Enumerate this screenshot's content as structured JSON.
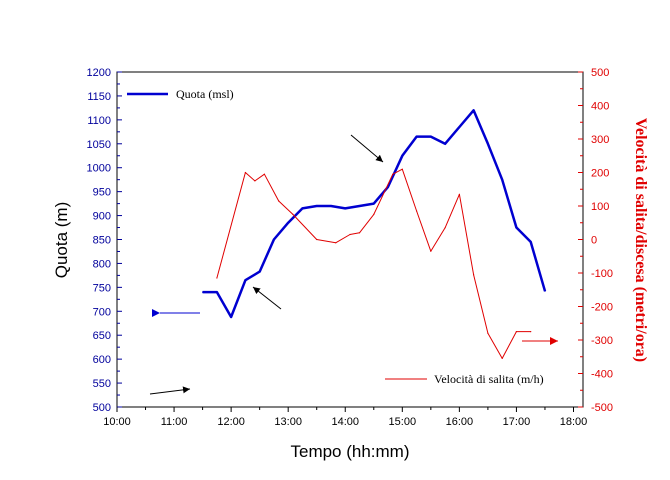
{
  "chart_data": {
    "type": "line",
    "xlabel": "Tempo (hh:mm)",
    "ylabel_left": "Quota (m)",
    "ylabel_right": "Velocità di salita/discesa (metri/ora)",
    "x_ticks": [
      "10:00",
      "11:00",
      "12:00",
      "13:00",
      "14:00",
      "15:00",
      "16:00",
      "17:00",
      "18:00"
    ],
    "xlim": [
      "10:00",
      "18:10"
    ],
    "ylim_left": [
      500,
      1200
    ],
    "yticks_left": [
      500,
      550,
      600,
      650,
      700,
      750,
      800,
      850,
      900,
      950,
      1000,
      1050,
      1100,
      1150,
      1200
    ],
    "ylim_right": [
      -500,
      500
    ],
    "yticks_right": [
      -500,
      -400,
      -300,
      -200,
      -100,
      0,
      100,
      200,
      300,
      400,
      500
    ],
    "grid": false,
    "legend": [
      "top-left",
      "bottom-right"
    ],
    "colors": {
      "left_axis": "#00009c",
      "right_axis": "#e00000",
      "quota": "#0000d0",
      "velocita": "#e00000"
    },
    "series": [
      {
        "name": "Quota (msl)",
        "axis": "left",
        "x": [
          "11:30",
          "11:45",
          "12:00",
          "12:15",
          "12:30",
          "12:45",
          "13:00",
          "13:15",
          "13:30",
          "13:45",
          "14:00",
          "14:15",
          "14:30",
          "14:45",
          "15:00",
          "15:15",
          "15:30",
          "15:45",
          "16:00",
          "16:15",
          "16:30",
          "16:45",
          "17:00",
          "17:15",
          "17:30"
        ],
        "values": [
          740,
          740,
          688,
          765,
          783,
          850,
          885,
          915,
          920,
          920,
          915,
          920,
          925,
          960,
          1025,
          1065,
          1065,
          1050,
          1085,
          1120,
          1050,
          975,
          875,
          845,
          742
        ]
      },
      {
        "name": "Velocità di salita (m/h)",
        "axis": "right",
        "x": [
          "11:45",
          "12:15",
          "12:25",
          "12:35",
          "12:50",
          "13:05",
          "13:30",
          "13:50",
          "14:05",
          "14:15",
          "14:30",
          "14:50",
          "15:00",
          "15:15",
          "15:30",
          "15:45",
          "16:00",
          "16:15",
          "16:30",
          "16:45",
          "17:00",
          "17:15"
        ],
        "values": [
          -115,
          200,
          175,
          195,
          115,
          75,
          0,
          -10,
          15,
          20,
          75,
          195,
          210,
          85,
          -35,
          35,
          135,
          -105,
          -280,
          -355,
          -275,
          -275
        ]
      }
    ]
  }
}
